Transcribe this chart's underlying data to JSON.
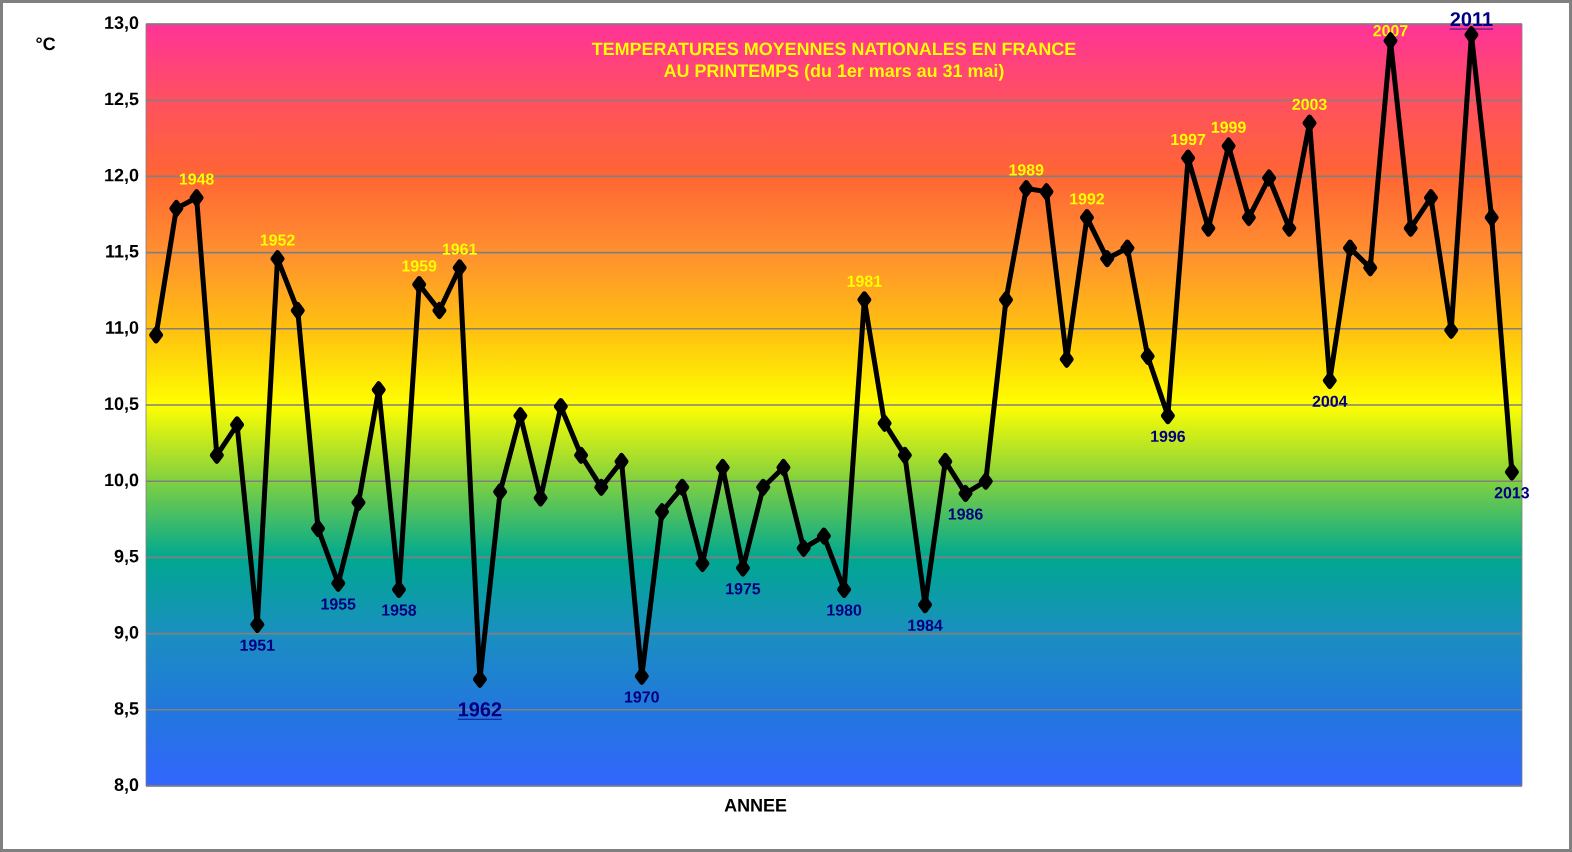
{
  "chart_data": {
    "type": "line",
    "title": "TEMPERATURES MOYENNES NATIONALES EN FRANCE",
    "subtitle": "AU PRINTEMPS (du 1er mars au 31 mai)",
    "xlabel": "ANNEE",
    "ylabel": "°C",
    "categories": [
      null,
      null,
      null,
      null,
      null,
      null,
      null,
      null,
      null,
      null,
      null,
      null,
      null,
      null,
      null,
      null,
      null,
      null,
      null,
      null,
      null,
      null,
      null,
      null,
      null,
      null,
      null,
      null,
      null,
      null,
      null,
      null,
      null,
      null,
      null,
      null,
      null,
      null,
      null,
      null,
      null,
      null,
      null,
      null,
      null,
      null,
      null,
      null,
      null,
      null,
      null,
      null,
      null,
      null,
      null,
      null,
      null,
      null,
      null,
      null,
      null,
      null,
      null,
      null,
      null,
      null,
      null,
      null
    ],
    "values": [
      10.96,
      11.79,
      11.86,
      10.17,
      10.37,
      9.06,
      11.46,
      11.12,
      9.69,
      9.33,
      9.86,
      10.6,
      9.29,
      11.29,
      11.12,
      11.4,
      8.7,
      9.93,
      10.43,
      9.89,
      10.49,
      10.17,
      9.96,
      10.13,
      8.72,
      9.8,
      9.96,
      9.46,
      10.09,
      9.43,
      9.96,
      10.09,
      9.56,
      9.64,
      9.29,
      11.19,
      10.38,
      10.17,
      9.19,
      10.13,
      9.92,
      10.0,
      11.19,
      11.92,
      11.9,
      10.8,
      11.73,
      11.46,
      11.53,
      10.82,
      10.43,
      12.12,
      11.66,
      12.2,
      11.73,
      11.99,
      11.66,
      12.35,
      10.66,
      11.53,
      11.4,
      12.89,
      11.66,
      11.86,
      10.99,
      12.93,
      11.73,
      10.06
    ],
    "color": "#000000",
    "marker": "diamond",
    "ylim": [
      8,
      13
    ],
    "yticks": [
      {
        "value": 8,
        "label": "8,0"
      },
      {
        "value": 8.5,
        "label": "8,5"
      },
      {
        "value": 9,
        "label": "9,0"
      },
      {
        "value": 9.5,
        "label": "9,5"
      },
      {
        "value": 10,
        "label": "10,0"
      },
      {
        "value": 10.5,
        "label": "10,5"
      },
      {
        "value": 11,
        "label": "11,0"
      },
      {
        "value": 11.5,
        "label": "11,5"
      },
      {
        "value": 12,
        "label": "12,0"
      },
      {
        "value": 12.5,
        "label": "12,5"
      },
      {
        "value": 13,
        "label": "13,0"
      }
    ],
    "grid": "y",
    "annotations": [
      {
        "text": "1948",
        "y": 11.86
      },
      {
        "text": "1951",
        "y": 9.06
      },
      {
        "text": "1952",
        "y": 11.46
      },
      {
        "text": "1955",
        "y": 9.33
      },
      {
        "text": "1958",
        "y": 9.29
      },
      {
        "text": "1959",
        "y": 11.29
      },
      {
        "text": "1961",
        "y": 11.4
      },
      {
        "text": "1962",
        "y": 8.7
      },
      {
        "text": "1970",
        "y": 8.72
      },
      {
        "text": "1975",
        "y": 9.43
      },
      {
        "text": "1980",
        "y": 9.29
      },
      {
        "text": "1981",
        "y": 11.19
      },
      {
        "text": "1984",
        "y": 9.19
      },
      {
        "text": "1986",
        "y": 9.92
      },
      {
        "text": "1989",
        "y": 11.92
      },
      {
        "text": "1992",
        "y": 11.73
      },
      {
        "text": "1996",
        "y": 10.43
      },
      {
        "text": "1997",
        "y": 12.12
      },
      {
        "text": "1999",
        "y": 12.2
      },
      {
        "text": "2003",
        "y": 12.35
      },
      {
        "text": "2004",
        "y": 10.66
      },
      {
        "text": "2007",
        "y": 12.89
      },
      {
        "text": "2011",
        "y": 12.93
      },
      {
        "text": "2013",
        "y": 10.06
      }
    ]
  }
}
